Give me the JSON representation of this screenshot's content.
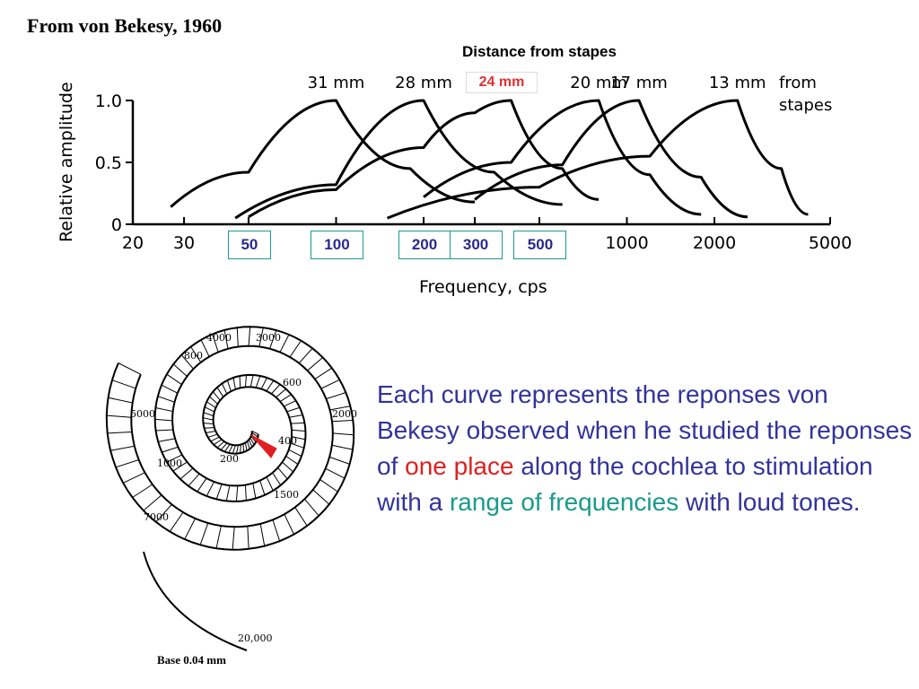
{
  "source_title": "From von Bekesy, 1960",
  "chart_data": {
    "type": "line",
    "title": "Distance from stapes",
    "xlabel": "Frequency, cps",
    "ylabel": "Relative amplitude",
    "x_scale": "log",
    "xlim": [
      20,
      5000
    ],
    "ylim": [
      0,
      1.0
    ],
    "x_ticks": [
      "20",
      "30",
      "50",
      "100",
      "200",
      "300",
      "500",
      "1000",
      "2000",
      "5000"
    ],
    "y_ticks": [
      "0",
      "0.5",
      "1.0"
    ],
    "highlighted_x_ticks": [
      "50",
      "100",
      "200",
      "300",
      "500"
    ],
    "peak_labels_suffix": "from stapes",
    "series": [
      {
        "name": "31 mm",
        "color": "#000000",
        "x": [
          27,
          50,
          100,
          180,
          300
        ],
        "y": [
          0.14,
          0.42,
          1.0,
          0.45,
          0.18
        ]
      },
      {
        "name": "28 mm",
        "color": "#000000",
        "x": [
          45,
          100,
          200,
          350,
          600
        ],
        "y": [
          0.05,
          0.32,
          1.0,
          0.42,
          0.16
        ]
      },
      {
        "name": "24 mm",
        "color": "#1a9a8a",
        "highlight": true,
        "x": [
          50,
          100,
          200,
          300,
          400,
          600,
          800
        ],
        "y": [
          0.06,
          0.28,
          0.62,
          0.9,
          1.0,
          0.45,
          0.2
        ]
      },
      {
        "name": "20 mm",
        "color": "#000000",
        "x": [
          200,
          400,
          800,
          1200,
          1800
        ],
        "y": [
          0.22,
          0.5,
          1.0,
          0.4,
          0.08
        ]
      },
      {
        "name": "17 mm",
        "color": "#000000",
        "x": [
          300,
          600,
          1100,
          1800,
          2600
        ],
        "y": [
          0.2,
          0.48,
          1.0,
          0.38,
          0.06
        ]
      },
      {
        "name": "13 mm",
        "color": "#000000",
        "x": [
          150,
          500,
          1200,
          2400,
          3400,
          4200
        ],
        "y": [
          0.05,
          0.3,
          0.55,
          1.0,
          0.45,
          0.08
        ]
      }
    ]
  },
  "mm24_label": "24 mm",
  "from_label": "from",
  "stapes_label": "stapes",
  "cochlea": {
    "frequency_labels": [
      "4000",
      "3000",
      "800",
      "600",
      "2000",
      "5000",
      "400",
      "200",
      "1000",
      "1500",
      "7000",
      "20,000"
    ],
    "base_label": "Base 0.04 mm"
  },
  "description": {
    "part1": "Each curve represents the reponses von Bekesy observed when he studied the reponses of ",
    "part2": "one place",
    "part3": " along the cochlea to stimulation with a ",
    "part4": "range of frequencies",
    "part5": " with loud tones.",
    "color_main": "#33339a",
    "color_red": "#e02020",
    "color_teal": "#1a9a8a"
  }
}
